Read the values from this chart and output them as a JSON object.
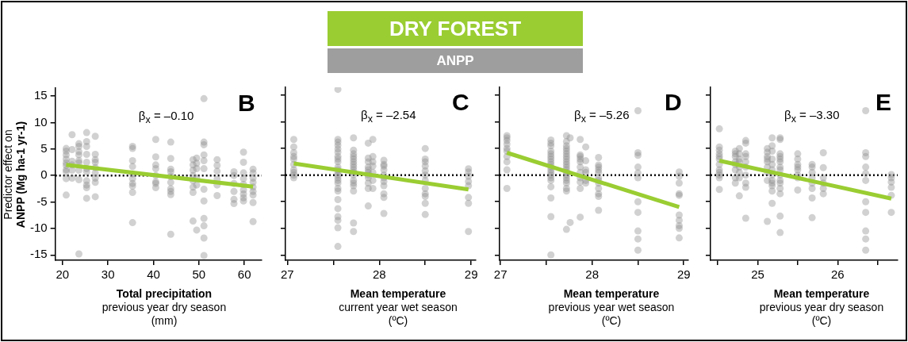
{
  "chart_data": [
    {
      "type": "other",
      "title": "DRY FOREST",
      "subtitle": "ANPP"
    },
    {
      "type": "scatter",
      "xlabel": "Total precipitation\nprevious year dry season\n(mm)",
      "ylabel": "Predictor effect on\nANPP (Mg ha-1 yr-1)",
      "annotations": [
        "B",
        "β$_{x}$ = –0.10"
      ],
      "xlim": [
        18.4,
        63.8
      ],
      "xticks": [
        20,
        30,
        40,
        50,
        60
      ],
      "ylim": [
        -16,
        16.5
      ],
      "yticks": [
        -15,
        -10,
        -5,
        0,
        5,
        10,
        15
      ],
      "grid": false,
      "legend": false,
      "marker": "circle",
      "ref_lines": [
        {
          "axis": "y",
          "value": 0,
          "color": "#000000",
          "line_style": "dotted"
        }
      ],
      "series": [
        {
          "type": "scatter",
          "color": "#8c8c8c",
          "x": [
            20.8,
            20.8,
            20.8,
            20.8,
            20.8,
            20.8,
            20.8,
            20.8,
            20.8,
            20.8,
            22.1,
            22.1,
            22.1,
            22.1,
            22.1,
            22.1,
            23.6,
            23.6,
            23.6,
            23.6,
            23.6,
            23.6,
            23.6,
            23.6,
            23.6,
            25.3,
            25.3,
            25.3,
            25.3,
            25.3,
            25.3,
            25.3,
            25.3,
            25.3,
            25.3,
            25.3,
            27.2,
            27.2,
            27.2,
            27.2,
            27.2,
            27.2,
            27.2,
            27.2,
            27.2,
            35.4,
            35.4,
            35.4,
            35.4,
            35.4,
            35.4,
            35.4,
            35.4,
            35.4,
            35.4,
            40.5,
            40.5,
            40.5,
            40.5,
            40.5,
            40.5,
            40.5,
            40.5,
            43.8,
            43.8,
            43.8,
            43.8,
            43.8,
            43.8,
            43.8,
            43.8,
            43.8,
            43.8,
            48.7,
            48.7,
            48.7,
            48.7,
            48.7,
            48.7,
            48.7,
            48.7,
            49.5,
            49.5,
            49.5,
            49.5,
            49.5,
            49.5,
            51.1,
            51.1,
            51.1,
            51.1,
            51.1,
            51.1,
            51.1,
            51.1,
            51.1,
            51.1,
            51.1,
            51.1,
            54,
            54,
            54,
            54,
            54,
            54,
            57.7,
            57.7,
            57.7,
            57.7,
            57.7,
            57.7,
            59.8,
            59.8,
            59.8,
            59.8,
            59.8,
            59.8,
            59.8,
            59.8,
            59.8,
            61.9,
            61.9,
            61.9,
            61.9,
            61.9,
            61.9,
            61.9,
            61.9,
            61.9
          ],
          "values": [
            5.1,
            4.6,
            3.9,
            3.1,
            2.4,
            1.9,
            1.1,
            0.7,
            -0.6,
            -3.7,
            7.7,
            4.9,
            2.7,
            2,
            1,
            -0.5,
            6,
            5.5,
            4.5,
            3.9,
            2.8,
            2.4,
            1,
            -0.8,
            -14.8,
            8.1,
            6.4,
            5.5,
            4,
            2.5,
            1.3,
            0.7,
            -1,
            -1.8,
            -2.3,
            -4.3,
            7.4,
            4,
            3,
            2.5,
            1.5,
            0.5,
            -0.5,
            -1.3,
            -4,
            5.5,
            5.1,
            2.8,
            1.7,
            0.3,
            -0.6,
            -1.5,
            -2,
            -3.2,
            -8.9,
            6.8,
            3.5,
            2,
            1.3,
            0,
            -1.2,
            -1.5,
            -2.3,
            6.3,
            3.2,
            1.2,
            0.7,
            -0.2,
            -1.3,
            -2.5,
            -3,
            -3.6,
            -11.1,
            3,
            2,
            1,
            0,
            -1,
            -2.2,
            -3.2,
            -8.6,
            3.3,
            2.3,
            1.3,
            -0.5,
            -1.8,
            -10.3,
            14.5,
            6.3,
            5.8,
            3.9,
            2.8,
            1.3,
            -2.6,
            -4.8,
            -8.1,
            -9.5,
            -11.8,
            -15.1,
            3,
            1.9,
            0.8,
            -0.7,
            -1.8,
            -3.8,
            0.7,
            0,
            -1.5,
            -3,
            -4.5,
            -5.3,
            4.4,
            2.5,
            0.5,
            -0.6,
            -1.7,
            -2.7,
            -3.5,
            -4.2,
            -4.8,
            1.2,
            0.5,
            -0.5,
            -1.3,
            -2.2,
            -3,
            -3.7,
            -5.1,
            -8.7
          ]
        },
        {
          "type": "line",
          "color": "#9acd32",
          "marker": "none",
          "x": [
            20.8,
            61.9
          ],
          "values": [
            2.0,
            -2.1
          ]
        }
      ]
    },
    {
      "type": "scatter",
      "xlabel": "Mean temperature\ncurrent year wet season\n(ºC)",
      "annotations": [
        "C",
        "β$_{x}$ = –2.54"
      ],
      "xlim": [
        26.98,
        29.05
      ],
      "xticks": [
        27,
        {
          "value": 27.5,
          "label": null
        },
        28,
        {
          "value": 28.5,
          "label": null
        },
        29
      ],
      "ylim": [
        -16,
        16.5
      ],
      "yticks": [
        -15,
        -10,
        -5,
        0,
        5,
        10,
        15
      ],
      "tick_labels": "x",
      "grid": false,
      "legend": false,
      "marker": "circle",
      "ref_lines": [
        {
          "axis": "y",
          "value": 0,
          "color": "#000000",
          "line_style": "dotted"
        }
      ],
      "series": [
        {
          "type": "scatter",
          "color": "#8c8c8c",
          "x": [
            27.07,
            27.07,
            27.07,
            27.07,
            27.07,
            27.07,
            27.07,
            27.07,
            27.07,
            27.07,
            27.55,
            27.55,
            27.55,
            27.55,
            27.55,
            27.55,
            27.55,
            27.55,
            27.55,
            27.55,
            27.55,
            27.55,
            27.55,
            27.55,
            27.55,
            27.55,
            27.55,
            27.55,
            27.55,
            27.55,
            27.55,
            27.55,
            27.55,
            27.55,
            27.72,
            27.72,
            27.72,
            27.72,
            27.72,
            27.72,
            27.72,
            27.72,
            27.72,
            27.72,
            27.72,
            27.72,
            27.72,
            27.72,
            27.72,
            27.72,
            27.72,
            27.88,
            27.88,
            27.88,
            27.88,
            27.88,
            27.88,
            27.88,
            27.88,
            27.88,
            27.88,
            27.88,
            27.93,
            27.93,
            27.93,
            27.93,
            27.93,
            27.93,
            27.93,
            28.05,
            28.05,
            28.05,
            28.05,
            28.05,
            28.05,
            28.05,
            28.05,
            28.05,
            28.05,
            28.05,
            28.5,
            28.5,
            28.5,
            28.5,
            28.5,
            28.5,
            28.5,
            28.5,
            28.5,
            28.5,
            28.5,
            28.5,
            28.97,
            28.97,
            28.97,
            28.97,
            28.97,
            28.97,
            28.97,
            28.97
          ],
          "values": [
            6.7,
            5.3,
            4.2,
            3.5,
            3,
            2,
            1,
            0.5,
            0,
            -0.5,
            16.1,
            6.7,
            6.2,
            5.6,
            4.9,
            4.3,
            3.5,
            3,
            2.5,
            1.5,
            1,
            0.5,
            0,
            -0.5,
            -1,
            -1.5,
            -2.5,
            -3,
            -4.6,
            -6.3,
            -7.8,
            -8.5,
            -9.9,
            -13.4,
            7,
            4.7,
            4,
            3.5,
            3,
            2.5,
            2,
            1.5,
            1,
            0.5,
            0,
            -1,
            -1.5,
            -2,
            -3,
            -9,
            -10.6,
            6,
            3.2,
            2.5,
            1.5,
            1,
            0.5,
            0,
            -0.5,
            -1.5,
            -2.5,
            -5.8,
            6.7,
            3.5,
            2.5,
            1.7,
            0.5,
            -1,
            -2.5,
            2.8,
            2,
            1.7,
            1,
            0,
            -0.5,
            -1.2,
            -2,
            -3.5,
            -4.2,
            -7.2,
            5,
            3,
            2.5,
            1.7,
            0.8,
            0,
            -1,
            -2.5,
            -3.5,
            -4,
            -5.3,
            -7.4,
            1.2,
            0.6,
            -0.2,
            -1.2,
            -2,
            -4.2,
            -5.3,
            -10.6
          ]
        },
        {
          "type": "line",
          "color": "#9acd32",
          "marker": "none",
          "x": [
            27.07,
            28.97
          ],
          "values": [
            2.2,
            -2.7
          ]
        }
      ]
    },
    {
      "type": "scatter",
      "xlabel": "Mean temperature\nprevious year wet season\n(ºC)",
      "annotations": [
        "D",
        "β$_{x}$ = –5.26"
      ],
      "xlim": [
        26.99,
        29.05
      ],
      "xticks": [
        27,
        {
          "value": 27.5,
          "label": null
        },
        28,
        {
          "value": 28.5,
          "label": null
        },
        29
      ],
      "ylim": [
        -16,
        16.5
      ],
      "yticks": [
        -15,
        -10,
        -5,
        0,
        5,
        10,
        15
      ],
      "tick_labels": "x",
      "grid": false,
      "legend": false,
      "marker": "circle",
      "ref_lines": [
        {
          "axis": "y",
          "value": 0,
          "color": "#000000",
          "line_style": "dotted"
        }
      ],
      "series": [
        {
          "type": "scatter",
          "color": "#8c8c8c",
          "x": [
            27.07,
            27.07,
            27.07,
            27.07,
            27.07,
            27.07,
            27.07,
            27.07,
            27.07,
            27.07,
            27.55,
            27.55,
            27.55,
            27.55,
            27.55,
            27.55,
            27.55,
            27.55,
            27.55,
            27.55,
            27.55,
            27.55,
            27.55,
            27.55,
            27.55,
            27.55,
            27.55,
            27.55,
            27.55,
            27.72,
            27.72,
            27.72,
            27.72,
            27.72,
            27.72,
            27.72,
            27.72,
            27.72,
            27.72,
            27.72,
            27.72,
            27.72,
            27.72,
            27.72,
            27.72,
            27.72,
            27.72,
            27.72,
            27.72,
            27.76,
            27.76,
            27.87,
            27.87,
            27.87,
            27.87,
            27.87,
            27.87,
            27.87,
            27.87,
            27.87,
            27.87,
            27.87,
            27.93,
            27.93,
            27.93,
            27.93,
            27.93,
            27.93,
            28.07,
            28.07,
            28.07,
            28.07,
            28.07,
            28.07,
            28.07,
            28.07,
            28.07,
            28.07,
            28.07,
            28.07,
            28.5,
            28.5,
            28.5,
            28.5,
            28.5,
            28.5,
            28.5,
            28.5,
            28.5,
            28.5,
            28.5,
            28.95,
            28.95,
            28.95,
            28.95,
            28.95,
            28.95,
            28.95,
            28.95,
            28.95,
            28.95
          ],
          "values": [
            7.4,
            7,
            6.5,
            5.8,
            5,
            4.5,
            3.5,
            2.5,
            1,
            -2.5,
            6.6,
            6,
            5.5,
            4.5,
            4,
            3.5,
            3,
            2.5,
            2,
            1.5,
            1,
            0.5,
            0,
            -0.5,
            -1,
            -2.2,
            -4.3,
            -7.8,
            -15,
            7.4,
            6.3,
            5.5,
            5,
            4.5,
            4,
            3.5,
            3,
            2.5,
            2,
            1.5,
            1,
            0.5,
            0,
            -0.5,
            -1,
            -1.5,
            -2.5,
            -3,
            -10.2,
            7,
            -8.9,
            6.7,
            3.8,
            3.5,
            3,
            2.5,
            1.5,
            0.5,
            -0.5,
            -1.3,
            -2.5,
            -7.9,
            5.3,
            2.7,
            1,
            0.5,
            -1,
            -1.5,
            3.3,
            1.9,
            1.5,
            1,
            0.5,
            -0.5,
            -1,
            -1.5,
            -2.5,
            -3.5,
            -4,
            -6.6,
            12.1,
            4.2,
            3.7,
            1.5,
            0.4,
            -0.5,
            -5,
            -7,
            -10.5,
            -12,
            -14.1,
            0.6,
            -0.2,
            -1.5,
            -3.5,
            -3.8,
            -7.5,
            -8.5,
            -9.5,
            -10,
            -11.8
          ]
        },
        {
          "type": "line",
          "color": "#9acd32",
          "marker": "none",
          "x": [
            27.07,
            28.95
          ],
          "values": [
            4.2,
            -6.0
          ]
        }
      ]
    },
    {
      "type": "scatter",
      "xlabel": "Mean temperature\nprevious year dry season\n(ºC)",
      "annotations": [
        "E",
        "β$_{x}$ = –3.30"
      ],
      "xlim": [
        24.41,
        26.75
      ],
      "xticks": [
        {
          "value": 24.5,
          "label": null
        },
        25,
        {
          "value": 25.5,
          "label": null
        },
        26,
        {
          "value": 26.5,
          "label": null
        }
      ],
      "ylim": [
        -16,
        16.5
      ],
      "yticks": [
        -15,
        -10,
        -5,
        0,
        5,
        10,
        15
      ],
      "tick_labels": "x",
      "grid": false,
      "legend": false,
      "marker": "circle",
      "ref_lines": [
        {
          "axis": "y",
          "value": 0,
          "color": "#000000",
          "line_style": "dotted"
        }
      ],
      "series": [
        {
          "type": "scatter",
          "color": "#8c8c8c",
          "x": [
            24.52,
            24.52,
            24.52,
            24.52,
            24.52,
            24.52,
            24.52,
            24.52,
            24.52,
            24.52,
            24.52,
            24.52,
            24.72,
            24.72,
            24.72,
            24.72,
            24.72,
            24.72,
            24.72,
            24.72,
            24.77,
            24.77,
            24.77,
            24.77,
            24.77,
            24.77,
            24.77,
            24.77,
            24.85,
            24.85,
            24.85,
            24.85,
            24.85,
            24.85,
            24.85,
            24.85,
            24.85,
            24.85,
            25.12,
            25.12,
            25.12,
            25.12,
            25.12,
            25.12,
            25.12,
            25.12,
            25.12,
            25.18,
            25.18,
            25.18,
            25.18,
            25.18,
            25.18,
            25.18,
            25.18,
            25.18,
            25.18,
            25.18,
            25.18,
            25.28,
            25.28,
            25.28,
            25.28,
            25.28,
            25.28,
            25.28,
            25.28,
            25.28,
            25.28,
            25.28,
            25.28,
            25.28,
            25.28,
            25.28,
            25.5,
            25.5,
            25.5,
            25.5,
            25.5,
            25.5,
            25.5,
            25.5,
            25.68,
            25.68,
            25.68,
            25.68,
            25.68,
            25.68,
            25.68,
            25.68,
            25.82,
            25.82,
            25.82,
            25.82,
            25.82,
            25.82,
            26.35,
            26.35,
            26.35,
            26.35,
            26.35,
            26.35,
            26.35,
            26.35,
            26.35,
            26.35,
            26.35,
            26.67,
            26.67,
            26.67,
            26.67,
            26.67,
            26.67
          ],
          "values": [
            8.7,
            5.3,
            4.7,
            4,
            3.5,
            3,
            2,
            1,
            0.5,
            0,
            -0.5,
            -2.7,
            4.5,
            4,
            3.5,
            2.5,
            2,
            1,
            -0.5,
            -1.5,
            5,
            4,
            3,
            2.5,
            1.5,
            0.5,
            -0.5,
            -3.9,
            6.5,
            6,
            4,
            3.5,
            2.5,
            1.5,
            0,
            -1.5,
            -2.3,
            -8.1,
            5,
            4.3,
            3.5,
            3,
            2.5,
            1.5,
            0.5,
            -1,
            -8.7,
            7,
            5.5,
            4.5,
            3,
            2,
            1,
            0,
            -1,
            -1.5,
            -2,
            -3,
            -5.3,
            7,
            6.7,
            4,
            3.5,
            3,
            2.5,
            1.5,
            1,
            0,
            -1,
            -1.5,
            -2.5,
            -3.5,
            -7.7,
            -10.8,
            4,
            3,
            2,
            1.5,
            1,
            0,
            -0.5,
            -2.8,
            2,
            1.5,
            0.5,
            -0.5,
            -1.5,
            -2.5,
            -4.3,
            -8,
            4.2,
            1.4,
            -0.5,
            -1.5,
            -2.5,
            -3.5,
            12.1,
            4.2,
            3.5,
            1.5,
            0.3,
            -1,
            -5,
            -7,
            -10.5,
            -12,
            -14.1,
            0.1,
            -0.5,
            -1.3,
            -2.3,
            -3.8,
            -7
          ]
        },
        {
          "type": "line",
          "color": "#9acd32",
          "marker": "none",
          "x": [
            24.52,
            26.67
          ],
          "values": [
            2.7,
            -4.4
          ]
        }
      ]
    }
  ]
}
